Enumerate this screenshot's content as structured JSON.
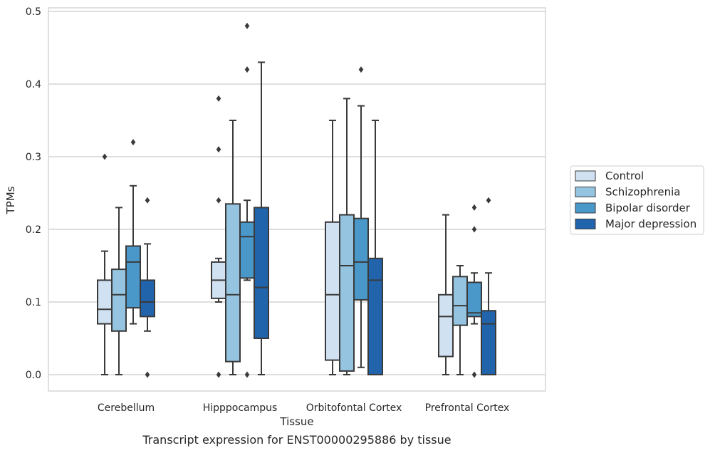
{
  "caption": "Transcript expression for ENST00000295886 by tissue",
  "chart_data": {
    "type": "box",
    "xlabel": "Tissue",
    "ylabel": "TPMs",
    "ylim": [
      -0.023,
      0.505
    ],
    "yticks": [
      0.0,
      0.1,
      0.2,
      0.3,
      0.4,
      0.5
    ],
    "ytick_labels": [
      "0.0",
      "0.1",
      "0.2",
      "0.3",
      "0.4",
      "0.5"
    ],
    "grid": "horizontal",
    "legend_position": "right",
    "categories": [
      "Cerebellum",
      "Hipppocampus",
      "Orbitofontal Cortex",
      "Prefrontal Cortex"
    ],
    "series": [
      {
        "name": "Control",
        "color": "#d0e1f2",
        "boxes": [
          {
            "whislo": 0.0,
            "q1": 0.07,
            "med": 0.09,
            "q3": 0.13,
            "whishi": 0.17,
            "fliers": [
              0.3
            ]
          },
          {
            "whislo": 0.1,
            "q1": 0.105,
            "med": 0.13,
            "q3": 0.155,
            "whishi": 0.16,
            "fliers": [
              0.0,
              0.24,
              0.31,
              0.38
            ]
          },
          {
            "whislo": 0.0,
            "q1": 0.02,
            "med": 0.11,
            "q3": 0.21,
            "whishi": 0.35,
            "fliers": []
          },
          {
            "whislo": 0.0,
            "q1": 0.025,
            "med": 0.08,
            "q3": 0.11,
            "whishi": 0.22,
            "fliers": []
          }
        ]
      },
      {
        "name": "Schizophrenia",
        "color": "#94c4df",
        "boxes": [
          {
            "whislo": 0.0,
            "q1": 0.06,
            "med": 0.11,
            "q3": 0.145,
            "whishi": 0.23,
            "fliers": []
          },
          {
            "whislo": 0.0,
            "q1": 0.018,
            "med": 0.11,
            "q3": 0.235,
            "whishi": 0.35,
            "fliers": []
          },
          {
            "whislo": 0.0,
            "q1": 0.005,
            "med": 0.15,
            "q3": 0.22,
            "whishi": 0.38,
            "fliers": []
          },
          {
            "whislo": 0.0,
            "q1": 0.068,
            "med": 0.095,
            "q3": 0.135,
            "whishi": 0.15,
            "fliers": []
          }
        ]
      },
      {
        "name": "Bipolar disorder",
        "color": "#4a98c9",
        "boxes": [
          {
            "whislo": 0.07,
            "q1": 0.092,
            "med": 0.155,
            "q3": 0.177,
            "whishi": 0.26,
            "fliers": [
              0.32
            ]
          },
          {
            "whislo": 0.13,
            "q1": 0.133,
            "med": 0.19,
            "q3": 0.21,
            "whishi": 0.24,
            "fliers": [
              0.0,
              0.42,
              0.48
            ]
          },
          {
            "whislo": 0.01,
            "q1": 0.103,
            "med": 0.155,
            "q3": 0.215,
            "whishi": 0.37,
            "fliers": [
              0.42
            ]
          },
          {
            "whislo": 0.07,
            "q1": 0.08,
            "med": 0.085,
            "q3": 0.127,
            "whishi": 0.14,
            "fliers": [
              0.0,
              0.2,
              0.23
            ]
          }
        ]
      },
      {
        "name": "Major depression",
        "color": "#2164ab",
        "boxes": [
          {
            "whislo": 0.06,
            "q1": 0.08,
            "med": 0.1,
            "q3": 0.13,
            "whishi": 0.18,
            "fliers": [
              0.0,
              0.24
            ]
          },
          {
            "whislo": 0.0,
            "q1": 0.05,
            "med": 0.12,
            "q3": 0.23,
            "whishi": 0.43,
            "fliers": []
          },
          {
            "whislo": 0.0,
            "q1": 0.0,
            "med": 0.13,
            "q3": 0.16,
            "whishi": 0.35,
            "fliers": []
          },
          {
            "whislo": 0.0,
            "q1": 0.0,
            "med": 0.07,
            "q3": 0.088,
            "whishi": 0.14,
            "fliers": [
              0.24
            ]
          }
        ]
      }
    ]
  }
}
